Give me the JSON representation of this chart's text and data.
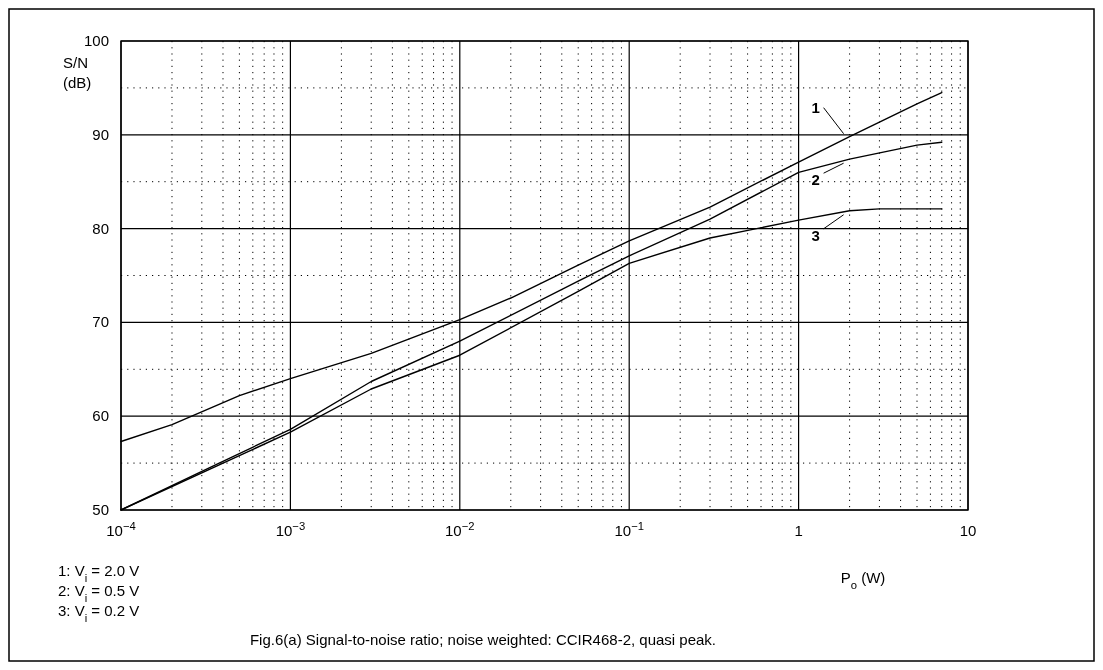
{
  "chart_data": {
    "type": "line",
    "xlabel": "P$_{o}$ (W)",
    "ylabel": "S/N (dB)",
    "log": "x",
    "xlim": [
      0.0001,
      10
    ],
    "xticks": [
      {
        "value": 0.0001,
        "label": "10$^{−4}$"
      },
      {
        "value": 0.001,
        "label": "10$^{−3}$"
      },
      {
        "value": 0.01,
        "label": "10$^{−2}$"
      },
      {
        "value": 0.1,
        "label": "10$^{−1}$"
      },
      1,
      10
    ],
    "ylim": [
      50,
      100
    ],
    "yticks": [
      50,
      60,
      70,
      80,
      90,
      100
    ],
    "grid": true,
    "legend": "right",
    "line_style": "solid",
    "series": [
      {
        "name": "1",
        "color": "#000000",
        "x": [
          0.0001,
          0.0002,
          0.0005,
          0.001,
          0.003,
          0.01,
          0.02,
          0.05,
          0.1,
          0.3,
          1,
          2,
          5,
          7
        ],
        "values": [
          57.3,
          59.1,
          62.2,
          64.0,
          66.7,
          70.3,
          72.6,
          76.1,
          78.7,
          82.3,
          87.1,
          89.8,
          93.3,
          94.5
        ]
      },
      {
        "name": "2",
        "color": "#000000",
        "x": [
          0.0001,
          0.00038,
          0.001,
          0.003,
          0.01,
          0.05,
          0.1,
          0.3,
          1,
          2,
          5,
          7
        ],
        "values": [
          50,
          55.0,
          58.6,
          63.7,
          68.0,
          74.4,
          77.1,
          81.0,
          86.0,
          87.4,
          88.9,
          89.2
        ]
      },
      {
        "name": "3",
        "color": "#000000",
        "x": [
          0.0001,
          0.001,
          0.003,
          0.01,
          0.05,
          0.1,
          0.3,
          1,
          2,
          3,
          7
        ],
        "values": [
          50,
          58.3,
          62.9,
          66.5,
          73.3,
          76.3,
          79.0,
          80.9,
          81.9,
          82.1,
          82.1
        ]
      }
    ],
    "annotations": [
      "1: V$_{i}$ = 2.0 V",
      "2: V$_{i}$ = 0.5 V",
      "3: V$_{i}$ = 0.2 V",
      "Fig.6(a) Signal-to-noise ratio; noise weighted: CCIR468-2, quasi peak."
    ]
  }
}
